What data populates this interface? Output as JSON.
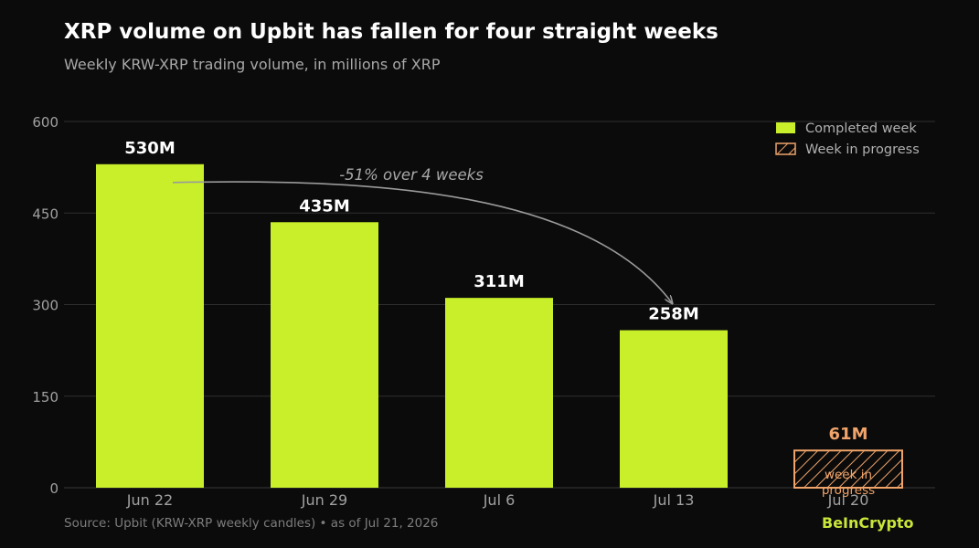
{
  "title": "XRP volume on Upbit has fallen for four straight weeks",
  "subtitle": "Weekly KRW-XRP trading volume, in millions of XRP",
  "source": "Source: Upbit (KRW-XRP weekly candles)  •  as of Jul 21, 2026",
  "brand": "BeInCrypto",
  "colors": {
    "background": "#0b0b0b",
    "bar": "#c8ef2a",
    "in_progress": "#f0a46a",
    "grid": "#2f2f2f",
    "axis_text": "#a0a0a0",
    "arrow": "#9a9a9a"
  },
  "chart_data": {
    "type": "bar",
    "title": "XRP volume on Upbit has fallen for four straight weeks",
    "subtitle": "Weekly KRW-XRP trading volume, in millions of XRP",
    "categories": [
      "Jun 22",
      "Jun 29",
      "Jul 6",
      "Jul 13",
      "Jul 20"
    ],
    "series": [
      {
        "name": "Completed week",
        "values": [
          530,
          435,
          311,
          258,
          null
        ],
        "labels": [
          "530M",
          "435M",
          "311M",
          "258M",
          ""
        ]
      },
      {
        "name": "Week in progress",
        "values": [
          null,
          null,
          null,
          null,
          61
        ],
        "labels": [
          "",
          "",
          "",
          "",
          "61M"
        ],
        "pattern": "hatched"
      }
    ],
    "ylim": [
      0,
      600
    ],
    "yticks": [
      0,
      150,
      300,
      450,
      600
    ],
    "grid": true,
    "legend_position": "top-right",
    "annotations": [
      {
        "text": "-51% over 4 weeks",
        "from_category": "Jun 22",
        "to_category": "Jul 13",
        "type": "curved-arrow"
      },
      {
        "text": "week in progress",
        "category": "Jul 20"
      }
    ]
  }
}
